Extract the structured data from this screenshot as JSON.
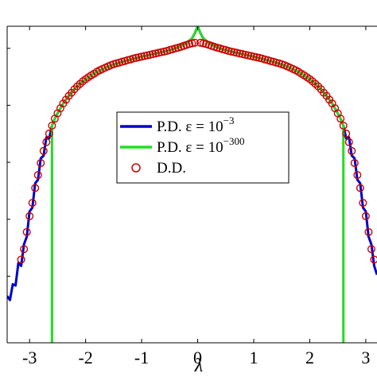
{
  "chart_data": {
    "type": "line",
    "xlabel": "λ",
    "ylabel": "",
    "x_ticks": [
      "-3",
      "-2",
      "-1",
      "0",
      "1",
      "2",
      "3"
    ],
    "x_tick_values": [
      -3,
      -2,
      -1,
      0,
      1,
      2,
      3
    ],
    "xlim": [
      -3.4,
      3.2
    ],
    "ylim": [
      0,
      1
    ],
    "y_scale": "log",
    "grid": false,
    "legend_placement": "center",
    "legend": [
      {
        "label_main": "P.D. ε = 10",
        "label_exp": "−3",
        "color": "#0000cc",
        "style": "line"
      },
      {
        "label_main": "P.D. ε = 10",
        "label_exp": "−300",
        "color": "#22dd22",
        "style": "line"
      },
      {
        "label_main": "D.D.",
        "label_exp": "",
        "color": "#cc0000",
        "style": "circle"
      }
    ],
    "series": [
      {
        "name": "P.D. ε = 10^-3",
        "color": "#0000cc",
        "x": [
          -3.4,
          -3.35,
          -3.3,
          -3.25,
          -3.2,
          -3.15,
          -3.1,
          -3.05,
          -3.0,
          -2.95,
          -2.9,
          -2.85,
          -2.8,
          -2.75,
          -2.7,
          -2.65,
          -2.6,
          -2.55,
          -2.5,
          -2.4,
          -2.3,
          -2.2,
          -2.1,
          -2.0,
          -1.8,
          -1.6,
          -1.4,
          -1.2,
          -1.0,
          -0.8,
          -0.6,
          -0.4,
          -0.2,
          -0.1,
          -0.05,
          0.0,
          0.05,
          0.1,
          0.2,
          0.4,
          0.6,
          0.8,
          1.0,
          1.2,
          1.4,
          1.6,
          1.8,
          2.0,
          2.1,
          2.2,
          2.3,
          2.4,
          2.5,
          2.55,
          2.6,
          2.65,
          2.7,
          2.75,
          2.8,
          2.85,
          2.9,
          2.95,
          3.0,
          3.05,
          3.1,
          3.15,
          3.2
        ],
        "y": [
          0.133,
          0.15,
          0.17,
          0.196,
          0.237,
          0.258,
          0.296,
          0.35,
          0.4,
          0.442,
          0.489,
          0.53,
          0.568,
          0.606,
          0.634,
          0.661,
          0.686,
          0.708,
          0.725,
          0.756,
          0.78,
          0.801,
          0.818,
          0.833,
          0.856,
          0.873,
          0.885,
          0.895,
          0.904,
          0.912,
          0.92,
          0.93,
          0.947,
          0.962,
          0.978,
          1.0,
          0.978,
          0.962,
          0.947,
          0.93,
          0.92,
          0.912,
          0.904,
          0.895,
          0.885,
          0.873,
          0.856,
          0.833,
          0.818,
          0.801,
          0.78,
          0.756,
          0.725,
          0.708,
          0.686,
          0.661,
          0.634,
          0.606,
          0.568,
          0.53,
          0.489,
          0.442,
          0.4,
          0.35,
          0.296,
          0.258,
          0.2
        ]
      },
      {
        "name": "P.D. ε = 10^-300",
        "color": "#22dd22",
        "x": [
          -2.6,
          -2.6,
          -2.55,
          -2.5,
          -2.4,
          -2.3,
          -2.2,
          -2.1,
          -2.0,
          -1.8,
          -1.6,
          -1.4,
          -1.2,
          -1.0,
          -0.8,
          -0.6,
          -0.4,
          -0.2,
          -0.1,
          -0.05,
          0.0,
          0.05,
          0.1,
          0.2,
          0.4,
          0.6,
          0.8,
          1.0,
          1.2,
          1.4,
          1.6,
          1.8,
          2.0,
          2.1,
          2.2,
          2.3,
          2.4,
          2.5,
          2.55,
          2.6,
          2.6
        ],
        "y": [
          0.0,
          0.686,
          0.708,
          0.725,
          0.756,
          0.78,
          0.801,
          0.818,
          0.833,
          0.856,
          0.873,
          0.885,
          0.895,
          0.904,
          0.912,
          0.92,
          0.93,
          0.947,
          0.962,
          0.978,
          1.0,
          0.978,
          0.962,
          0.947,
          0.93,
          0.92,
          0.912,
          0.904,
          0.895,
          0.885,
          0.873,
          0.856,
          0.833,
          0.818,
          0.801,
          0.78,
          0.756,
          0.725,
          0.708,
          0.686,
          0.0
        ]
      },
      {
        "name": "D.D.",
        "color": "#cc0000",
        "marker": "circle",
        "x": [
          -3.15,
          -3.1,
          -3.05,
          -3.0,
          -2.95,
          -2.9,
          -2.85,
          -2.8,
          -2.75,
          -2.7,
          -2.65,
          -2.6,
          -2.55,
          -2.5,
          -2.45,
          -2.4,
          -2.35,
          -2.3,
          -2.25,
          -2.2,
          -2.15,
          -2.1,
          -2.05,
          -2.0,
          -1.95,
          -1.9,
          -1.85,
          -1.8,
          -1.75,
          -1.7,
          -1.65,
          -1.6,
          -1.55,
          -1.5,
          -1.45,
          -1.4,
          -1.35,
          -1.3,
          -1.25,
          -1.2,
          -1.15,
          -1.1,
          -1.05,
          -1.0,
          -0.95,
          -0.9,
          -0.85,
          -0.8,
          -0.75,
          -0.7,
          -0.65,
          -0.6,
          -0.55,
          -0.5,
          -0.45,
          -0.4,
          -0.35,
          -0.3,
          -0.25,
          -0.2,
          -0.15,
          -0.1,
          -0.05,
          0.05,
          0.1,
          0.15,
          0.2,
          0.25,
          0.3,
          0.35,
          0.4,
          0.45,
          0.5,
          0.55,
          0.6,
          0.65,
          0.7,
          0.75,
          0.8,
          0.85,
          0.9,
          0.95,
          1.0,
          1.05,
          1.1,
          1.15,
          1.2,
          1.25,
          1.3,
          1.35,
          1.4,
          1.45,
          1.5,
          1.55,
          1.6,
          1.65,
          1.7,
          1.75,
          1.8,
          1.85,
          1.9,
          1.95,
          2.0,
          2.05,
          2.1,
          2.15,
          2.2,
          2.25,
          2.3,
          2.35,
          2.4,
          2.45,
          2.5,
          2.55,
          2.6,
          2.65,
          2.7,
          2.75,
          2.8,
          2.85,
          2.9,
          2.95,
          3.0,
          3.05,
          3.1,
          3.15
        ],
        "y": [
          0.263,
          0.296,
          0.35,
          0.4,
          0.442,
          0.489,
          0.53,
          0.568,
          0.606,
          0.634,
          0.661,
          0.686,
          0.708,
          0.725,
          0.741,
          0.756,
          0.768,
          0.78,
          0.79,
          0.801,
          0.81,
          0.818,
          0.826,
          0.833,
          0.839,
          0.845,
          0.85,
          0.856,
          0.861,
          0.865,
          0.869,
          0.873,
          0.877,
          0.88,
          0.883,
          0.885,
          0.888,
          0.89,
          0.893,
          0.895,
          0.898,
          0.9,
          0.902,
          0.904,
          0.906,
          0.908,
          0.91,
          0.912,
          0.914,
          0.916,
          0.918,
          0.92,
          0.922,
          0.925,
          0.927,
          0.93,
          0.932,
          0.935,
          0.938,
          0.941,
          0.944,
          0.946,
          0.948,
          0.948,
          0.946,
          0.944,
          0.941,
          0.938,
          0.935,
          0.932,
          0.93,
          0.927,
          0.925,
          0.922,
          0.92,
          0.918,
          0.916,
          0.914,
          0.912,
          0.91,
          0.908,
          0.906,
          0.904,
          0.902,
          0.9,
          0.898,
          0.895,
          0.893,
          0.89,
          0.888,
          0.885,
          0.883,
          0.88,
          0.877,
          0.873,
          0.869,
          0.865,
          0.861,
          0.856,
          0.85,
          0.845,
          0.839,
          0.833,
          0.826,
          0.818,
          0.81,
          0.801,
          0.79,
          0.78,
          0.768,
          0.756,
          0.741,
          0.725,
          0.708,
          0.686,
          0.661,
          0.634,
          0.606,
          0.568,
          0.53,
          0.489,
          0.442,
          0.4,
          0.35,
          0.296,
          0.263
        ]
      }
    ]
  }
}
